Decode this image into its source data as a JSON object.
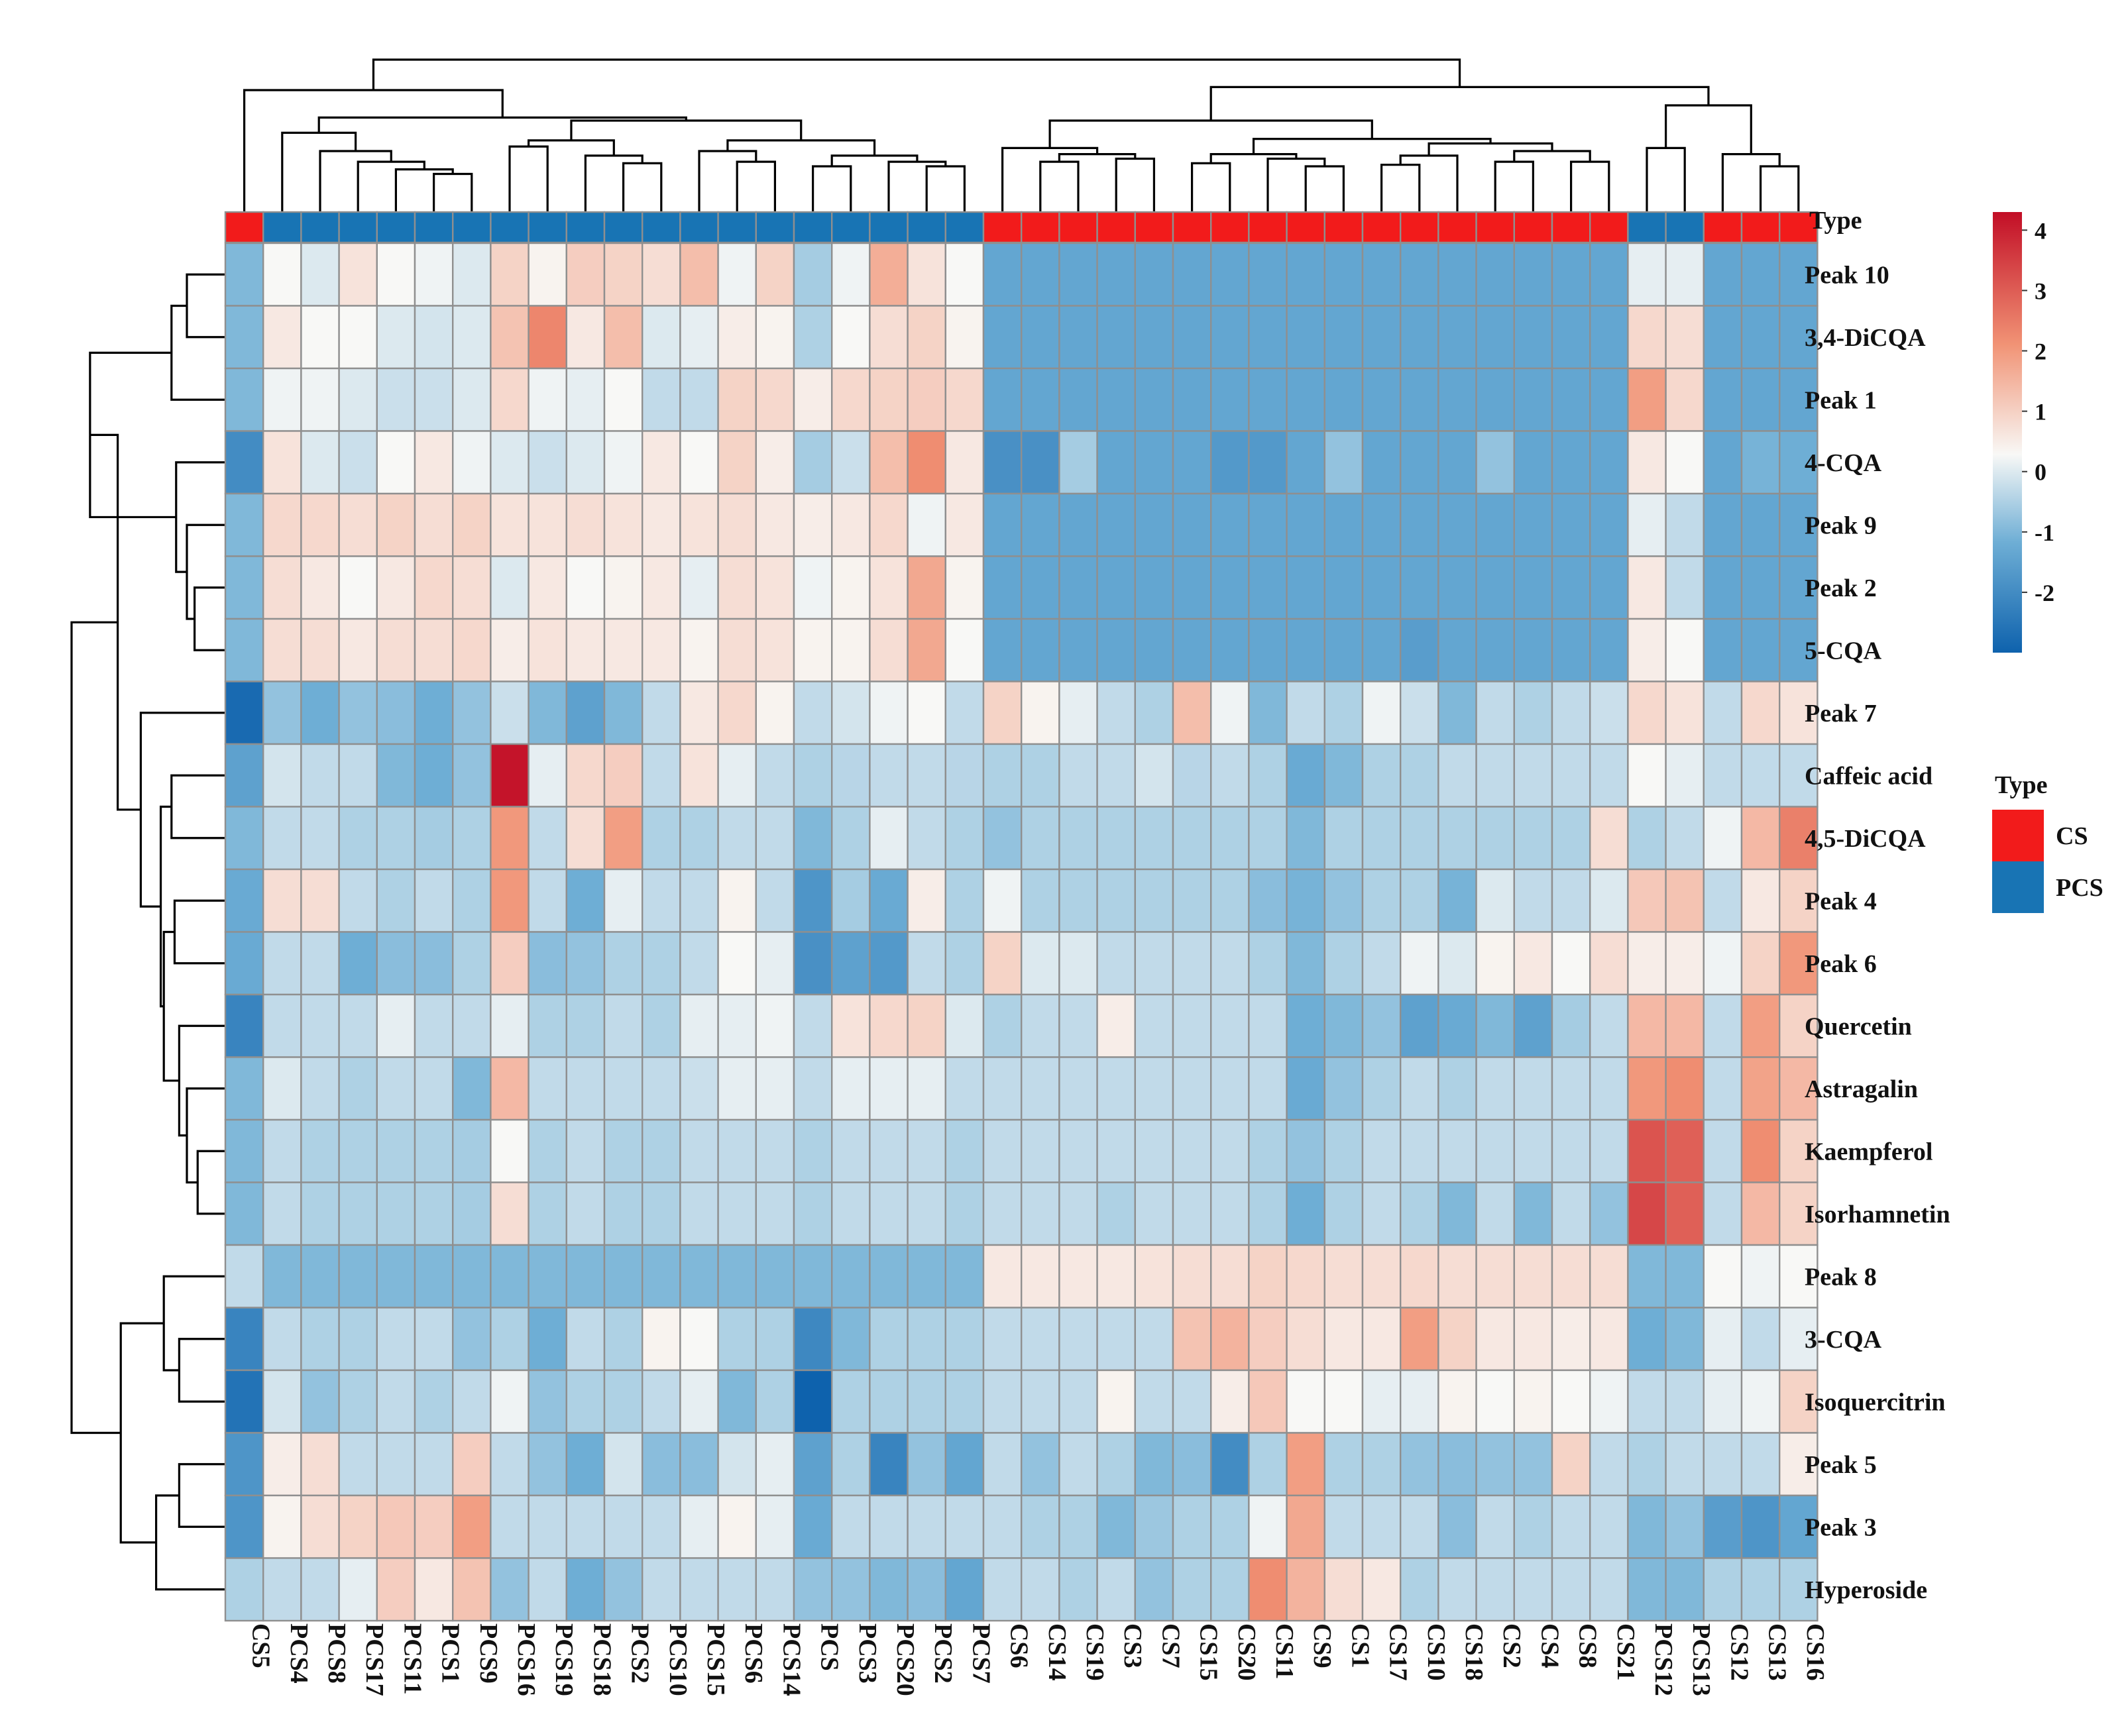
{
  "chart_data": {
    "type": "heatmap",
    "title": "",
    "columns": [
      "CS5",
      "PCS4",
      "PCS8",
      "PCS17",
      "PCS11",
      "PCS1",
      "PCS9",
      "PCS16",
      "PCS19",
      "PCS18",
      "PCS2",
      "PCS10",
      "PCS15",
      "PCS6",
      "PCS14",
      "PCS",
      "PCS3",
      "PCS20",
      "PCS2",
      "PCS7",
      "CS6",
      "CS14",
      "CS19",
      "CS3",
      "CS7",
      "CS15",
      "CS20",
      "CS11",
      "CS9",
      "CS1",
      "CS17",
      "CS10",
      "CS18",
      "CS2",
      "CS4",
      "CS8",
      "CS21",
      "PCS12",
      "PCS13",
      "CS12",
      "CS13",
      "CS16"
    ],
    "rows": [
      "Peak 10",
      "3,4-DiCQA",
      "Peak 1",
      "4-CQA",
      "Peak 9",
      "Peak 2",
      "5-CQA",
      "Peak 7",
      "Caffeic acid",
      "4,5-DiCQA",
      "Peak 4",
      "Peak 6",
      "Quercetin",
      "Astragalin",
      "Kaempferol",
      "Isorhamnetin",
      "Peak 8",
      "3-CQA",
      "Isoquercitrin",
      "Peak 5",
      "Peak 3",
      "Hyperoside"
    ],
    "values": [
      [
        -1.0,
        0.3,
        0.0,
        0.7,
        0.3,
        0.2,
        0.0,
        1.0,
        0.4,
        1.1,
        1.0,
        0.8,
        1.4,
        0.2,
        1.0,
        -0.6,
        0.2,
        1.7,
        0.7,
        0.3,
        -1.4,
        -1.4,
        -1.4,
        -1.4,
        -1.4,
        -1.4,
        -1.4,
        -1.4,
        -1.4,
        -1.4,
        -1.4,
        -1.4,
        -1.4,
        -1.4,
        -1.4,
        -1.4,
        -1.4,
        0.1,
        0.1,
        -1.4,
        -1.4,
        -1.4
      ],
      [
        -1.0,
        0.6,
        0.3,
        0.3,
        0.0,
        -0.1,
        0.0,
        1.3,
        2.4,
        0.6,
        1.4,
        0.0,
        0.1,
        0.5,
        0.4,
        -0.5,
        0.3,
        0.8,
        1.0,
        0.4,
        -1.4,
        -1.4,
        -1.4,
        -1.4,
        -1.4,
        -1.4,
        -1.4,
        -1.4,
        -1.4,
        -1.4,
        -1.4,
        -1.4,
        -1.4,
        -1.4,
        -1.4,
        -1.4,
        -1.4,
        0.9,
        0.8,
        -1.4,
        -1.4,
        -1.4
      ],
      [
        -1.0,
        0.2,
        0.2,
        0.0,
        -0.2,
        -0.2,
        0.0,
        0.9,
        0.2,
        0.1,
        0.3,
        -0.3,
        -0.3,
        1.0,
        0.9,
        0.5,
        0.9,
        1.0,
        1.1,
        0.9,
        -1.4,
        -1.4,
        -1.4,
        -1.4,
        -1.4,
        -1.4,
        -1.4,
        -1.4,
        -1.4,
        -1.4,
        -1.4,
        -1.4,
        -1.4,
        -1.4,
        -1.4,
        -1.4,
        -1.4,
        2.0,
        0.9,
        -1.4,
        -1.4,
        -1.4
      ],
      [
        -2.0,
        0.7,
        0.0,
        -0.2,
        0.3,
        0.6,
        0.2,
        0.0,
        -0.2,
        0.0,
        0.2,
        0.6,
        0.3,
        1.0,
        0.5,
        -0.6,
        -0.2,
        1.4,
        2.3,
        0.6,
        -1.9,
        -1.9,
        -0.6,
        -1.4,
        -1.4,
        -1.4,
        -1.7,
        -1.7,
        -1.4,
        -0.8,
        -1.4,
        -1.4,
        -1.4,
        -0.8,
        -1.4,
        -1.4,
        -1.4,
        0.6,
        0.3,
        -1.4,
        -1.1,
        -1.2
      ],
      [
        -1.0,
        0.9,
        0.9,
        0.8,
        1.0,
        0.8,
        1.0,
        0.7,
        0.7,
        0.8,
        0.7,
        0.6,
        0.7,
        0.8,
        0.6,
        0.5,
        0.6,
        0.9,
        0.2,
        0.6,
        -1.4,
        -1.4,
        -1.4,
        -1.4,
        -1.4,
        -1.4,
        -1.4,
        -1.4,
        -1.4,
        -1.4,
        -1.4,
        -1.4,
        -1.4,
        -1.4,
        -1.4,
        -1.4,
        -1.4,
        0.1,
        -0.3,
        -1.4,
        -1.4,
        -1.4
      ],
      [
        -1.0,
        0.8,
        0.6,
        0.3,
        0.6,
        0.9,
        0.8,
        0.0,
        0.6,
        0.3,
        0.4,
        0.6,
        0.1,
        0.8,
        0.7,
        0.2,
        0.4,
        0.7,
        1.8,
        0.4,
        -1.4,
        -1.4,
        -1.4,
        -1.4,
        -1.4,
        -1.4,
        -1.4,
        -1.4,
        -1.4,
        -1.4,
        -1.4,
        -1.4,
        -1.4,
        -1.4,
        -1.4,
        -1.4,
        -1.4,
        0.6,
        -0.3,
        -1.4,
        -1.4,
        -1.4
      ],
      [
        -1.0,
        0.8,
        0.8,
        0.6,
        0.8,
        0.8,
        0.9,
        0.5,
        0.7,
        0.6,
        0.6,
        0.6,
        0.4,
        0.8,
        0.7,
        0.4,
        0.4,
        0.8,
        1.8,
        0.3,
        -1.4,
        -1.4,
        -1.4,
        -1.4,
        -1.4,
        -1.4,
        -1.4,
        -1.4,
        -1.4,
        -1.4,
        -1.4,
        -1.6,
        -1.4,
        -1.4,
        -1.4,
        -1.4,
        -1.4,
        0.5,
        0.3,
        -1.4,
        -1.4,
        -1.4
      ],
      [
        -2.8,
        -0.8,
        -1.2,
        -0.8,
        -0.9,
        -1.2,
        -0.8,
        -0.2,
        -1.0,
        -1.5,
        -1.0,
        -0.3,
        0.6,
        0.9,
        0.4,
        -0.3,
        -0.1,
        0.2,
        0.3,
        -0.3,
        1.0,
        0.4,
        0.1,
        -0.3,
        -0.5,
        1.4,
        0.2,
        -1.0,
        -0.3,
        -0.5,
        0.2,
        -0.2,
        -1.0,
        -0.3,
        -0.5,
        -0.3,
        -0.2,
        0.9,
        0.7,
        -0.3,
        0.9,
        0.7
      ],
      [
        -1.5,
        -0.1,
        -0.3,
        -0.3,
        -1.0,
        -1.2,
        -0.8,
        4.2,
        0.1,
        0.9,
        1.1,
        -0.3,
        0.7,
        0.1,
        -0.3,
        -0.5,
        -0.4,
        -0.3,
        -0.3,
        -0.4,
        -0.5,
        -0.5,
        -0.3,
        -0.3,
        -0.1,
        -0.4,
        -0.3,
        -0.5,
        -1.3,
        -1.0,
        -0.5,
        -0.5,
        -0.3,
        -0.3,
        -0.3,
        -0.3,
        -0.3,
        0.3,
        0.1,
        -0.3,
        -0.3,
        -0.3
      ],
      [
        -1.0,
        -0.3,
        -0.3,
        -0.5,
        -0.5,
        -0.6,
        -0.5,
        2.1,
        -0.3,
        0.8,
        2.0,
        -0.5,
        -0.5,
        -0.3,
        -0.3,
        -1.0,
        -0.5,
        0.1,
        -0.3,
        -0.5,
        -0.8,
        -0.5,
        -0.5,
        -0.5,
        -0.5,
        -0.5,
        -0.5,
        -0.5,
        -1.0,
        -0.5,
        -0.5,
        -0.5,
        -0.5,
        -0.5,
        -0.5,
        -0.5,
        0.8,
        -0.5,
        -0.3,
        0.2,
        1.5,
        2.5
      ],
      [
        -1.3,
        0.8,
        0.8,
        -0.3,
        -0.5,
        -0.3,
        -0.5,
        2.1,
        -0.3,
        -1.2,
        0.1,
        -0.3,
        -0.3,
        0.4,
        -0.3,
        -1.8,
        -0.6,
        -1.3,
        0.5,
        -0.5,
        0.2,
        -0.5,
        -0.5,
        -0.5,
        -0.5,
        -0.5,
        -0.5,
        -0.9,
        -1.1,
        -0.8,
        -0.5,
        -0.5,
        -1.1,
        0.0,
        -0.3,
        -0.3,
        0.0,
        1.2,
        1.3,
        -0.3,
        0.6,
        1.0
      ],
      [
        -1.3,
        -0.3,
        -0.3,
        -1.2,
        -0.9,
        -0.9,
        -0.5,
        1.1,
        -0.9,
        -0.8,
        -0.5,
        -0.5,
        -0.3,
        0.3,
        0.1,
        -1.9,
        -1.5,
        -1.7,
        -0.3,
        -0.5,
        1.0,
        0.0,
        0.0,
        -0.3,
        -0.3,
        -0.3,
        -0.3,
        -0.5,
        -1.0,
        -0.5,
        -0.3,
        0.2,
        0.0,
        0.4,
        0.6,
        0.3,
        0.8,
        0.5,
        0.5,
        0.2,
        1.0,
        2.1
      ],
      [
        -2.2,
        -0.3,
        -0.3,
        -0.3,
        0.1,
        -0.3,
        -0.3,
        0.1,
        -0.5,
        -0.5,
        -0.3,
        -0.5,
        0.1,
        0.1,
        0.2,
        -0.3,
        0.7,
        0.9,
        1.0,
        0.0,
        -0.5,
        -0.3,
        -0.3,
        0.5,
        -0.3,
        -0.3,
        -0.3,
        -0.3,
        -1.2,
        -1.0,
        -0.8,
        -1.5,
        -1.3,
        -1.0,
        -1.5,
        -0.6,
        -0.3,
        1.5,
        1.5,
        -0.3,
        2.0,
        1.0
      ],
      [
        -1.0,
        0.0,
        -0.3,
        -0.5,
        -0.3,
        -0.3,
        -1.0,
        1.5,
        -0.3,
        -0.3,
        -0.3,
        -0.3,
        -0.2,
        0.1,
        0.1,
        -0.3,
        0.1,
        0.1,
        0.1,
        -0.3,
        -0.3,
        -0.3,
        -0.3,
        -0.3,
        -0.3,
        -0.3,
        -0.3,
        -0.3,
        -1.3,
        -0.8,
        -0.5,
        -0.3,
        -0.5,
        -0.3,
        -0.3,
        -0.3,
        -0.3,
        2.1,
        2.3,
        -0.3,
        1.9,
        1.5
      ],
      [
        -1.0,
        -0.3,
        -0.5,
        -0.5,
        -0.5,
        -0.5,
        -0.6,
        0.3,
        -0.5,
        -0.3,
        -0.5,
        -0.5,
        -0.3,
        -0.3,
        -0.3,
        -0.5,
        -0.3,
        -0.3,
        -0.3,
        -0.5,
        -0.3,
        -0.3,
        -0.3,
        -0.3,
        -0.3,
        -0.3,
        -0.3,
        -0.5,
        -0.8,
        -0.5,
        -0.3,
        -0.3,
        -0.3,
        -0.3,
        -0.3,
        -0.3,
        -0.3,
        3.2,
        3.0,
        -0.3,
        2.3,
        1.0
      ],
      [
        -1.0,
        -0.3,
        -0.5,
        -0.5,
        -0.5,
        -0.5,
        -0.6,
        0.8,
        -0.5,
        -0.3,
        -0.5,
        -0.5,
        -0.3,
        -0.3,
        -0.3,
        -0.5,
        -0.3,
        -0.3,
        -0.3,
        -0.5,
        -0.3,
        -0.3,
        -0.3,
        -0.5,
        -0.3,
        -0.3,
        -0.3,
        -0.5,
        -1.2,
        -0.5,
        -0.3,
        -0.5,
        -1.0,
        -0.3,
        -1.0,
        -0.3,
        -0.8,
        3.4,
        3.0,
        -0.3,
        1.5,
        1.0
      ],
      [
        -0.3,
        -1.0,
        -1.0,
        -1.0,
        -1.0,
        -1.0,
        -1.0,
        -1.0,
        -1.0,
        -1.0,
        -1.0,
        -1.0,
        -1.0,
        -1.0,
        -1.0,
        -1.0,
        -1.0,
        -1.0,
        -1.0,
        -1.0,
        0.6,
        0.6,
        0.6,
        0.6,
        0.7,
        0.8,
        0.8,
        1.0,
        0.9,
        0.8,
        0.8,
        0.9,
        0.8,
        0.8,
        0.8,
        0.8,
        0.8,
        -1.0,
        -1.0,
        0.3,
        0.2,
        0.3
      ],
      [
        -2.2,
        -0.3,
        -0.5,
        -0.5,
        -0.3,
        -0.3,
        -0.8,
        -0.5,
        -1.2,
        -0.3,
        -0.5,
        0.4,
        0.3,
        -0.5,
        -0.5,
        -2.1,
        -1.0,
        -0.5,
        -0.5,
        -0.5,
        -0.3,
        -0.3,
        -0.3,
        -0.3,
        -0.3,
        1.3,
        1.6,
        1.1,
        0.8,
        0.6,
        0.6,
        2.0,
        1.0,
        0.6,
        0.6,
        0.5,
        0.6,
        -1.2,
        -1.0,
        0.1,
        -0.3,
        0.1
      ],
      [
        -2.6,
        -0.1,
        -0.8,
        -0.5,
        -0.3,
        -0.5,
        -0.3,
        0.2,
        -0.8,
        -0.5,
        -0.5,
        -0.3,
        0.1,
        -1.0,
        -0.5,
        -3.2,
        -0.5,
        -0.5,
        -0.5,
        -0.5,
        -0.3,
        -0.3,
        -0.3,
        0.4,
        -0.3,
        -0.3,
        0.5,
        1.2,
        0.3,
        0.3,
        0.1,
        0.1,
        0.4,
        0.3,
        0.4,
        0.3,
        0.2,
        -0.3,
        -0.3,
        0.1,
        0.2,
        1.0
      ],
      [
        -1.8,
        0.5,
        0.8,
        -0.3,
        -0.3,
        -0.3,
        1.1,
        -0.3,
        -0.8,
        -1.2,
        -0.1,
        -0.9,
        -0.9,
        -0.1,
        0.1,
        -1.5,
        -0.5,
        -2.2,
        -0.8,
        -1.4,
        -0.3,
        -0.8,
        -0.3,
        -0.5,
        -1.0,
        -0.9,
        -2.0,
        -0.5,
        2.0,
        -0.5,
        -0.5,
        -0.8,
        -0.9,
        -0.8,
        -0.8,
        1.0,
        -0.3,
        -0.5,
        -0.3,
        -0.3,
        -0.3,
        0.5
      ],
      [
        -1.8,
        0.4,
        0.8,
        1.0,
        1.2,
        1.1,
        2.0,
        -0.3,
        -0.3,
        -0.3,
        -0.3,
        -0.3,
        0.1,
        0.4,
        0.1,
        -1.3,
        -0.3,
        -0.3,
        -0.3,
        -0.3,
        -0.3,
        -0.5,
        -0.5,
        -1.0,
        -0.7,
        -0.5,
        -0.5,
        0.2,
        1.8,
        -0.3,
        -0.3,
        -0.3,
        -0.9,
        -0.3,
        -0.5,
        -0.3,
        -0.3,
        -1.0,
        -0.8,
        -1.6,
        -1.8,
        -1.4
      ],
      [
        -0.5,
        -0.3,
        -0.3,
        0.1,
        1.1,
        0.6,
        1.3,
        -0.8,
        -0.3,
        -1.2,
        -0.8,
        -0.3,
        -0.3,
        -0.3,
        -0.3,
        -0.8,
        -0.8,
        -1.0,
        -0.9,
        -1.4,
        -0.3,
        -0.3,
        -0.5,
        -0.3,
        -0.8,
        -0.5,
        -0.5,
        2.3,
        1.6,
        0.8,
        0.6,
        -0.5,
        -0.3,
        -0.3,
        -0.3,
        -0.3,
        -0.3,
        -1.0,
        -1.0,
        -0.5,
        -0.5,
        -0.5
      ]
    ],
    "type_annotation": {
      "label": "Type",
      "values": [
        "CS",
        "PCS",
        "PCS",
        "PCS",
        "PCS",
        "PCS",
        "PCS",
        "PCS",
        "PCS",
        "PCS",
        "PCS",
        "PCS",
        "PCS",
        "PCS",
        "PCS",
        "PCS",
        "PCS",
        "PCS",
        "PCS",
        "PCS",
        "CS",
        "CS",
        "CS",
        "CS",
        "CS",
        "CS",
        "CS",
        "CS",
        "CS",
        "CS",
        "CS",
        "CS",
        "CS",
        "CS",
        "CS",
        "CS",
        "CS",
        "PCS",
        "PCS",
        "CS",
        "CS",
        "CS"
      ]
    },
    "legend": {
      "title": "Type",
      "entries": [
        {
          "label": "CS",
          "color": "#f21b1b"
        },
        {
          "label": "PCS",
          "color": "#1874b4"
        }
      ],
      "placement": "right"
    },
    "colorbar": {
      "ticks": [
        "4",
        "3",
        "2",
        "1",
        "0",
        "-1",
        "-2"
      ],
      "range": [
        -3.0,
        4.3
      ],
      "colors": [
        "#0e62ad",
        "#6eaed5",
        "#f8f8f6",
        "#f19375",
        "#c20e26"
      ],
      "placement": "top-right"
    },
    "column_dendrogram": true,
    "row_dendrogram": true
  }
}
